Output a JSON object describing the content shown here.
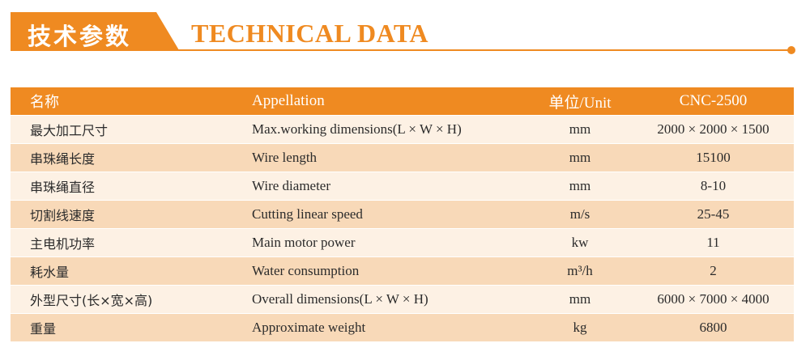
{
  "header": {
    "title_cn": "技术参数",
    "title_en": "TECHNICAL DATA"
  },
  "colors": {
    "accent": "#ef8a21",
    "row_light": "#fdf1e4",
    "row_dark": "#f8d9b8"
  },
  "table": {
    "columns": [
      "名称",
      "Appellation",
      "单位/Unit",
      "CNC-2500"
    ],
    "rows": [
      [
        "最大加工尺寸",
        "Max.working dimensions(L × W × H)",
        "mm",
        "2000 × 2000 × 1500"
      ],
      [
        "串珠绳长度",
        "Wire length",
        "mm",
        "15100"
      ],
      [
        "串珠绳直径",
        "Wire diameter",
        "mm",
        "8-10"
      ],
      [
        "切割线速度",
        "Cutting linear speed",
        "m/s",
        "25-45"
      ],
      [
        "主电机功率",
        "Main motor power",
        "kw",
        "11"
      ],
      [
        "耗水量",
        "Water consumption",
        "m³/h",
        "2"
      ],
      [
        "外型尺寸(长×宽×高)",
        "Overall dimensions(L × W × H)",
        "mm",
        "6000 × 7000 × 4000"
      ],
      [
        "重量",
        "Approximate weight",
        "kg",
        "6800"
      ]
    ]
  }
}
